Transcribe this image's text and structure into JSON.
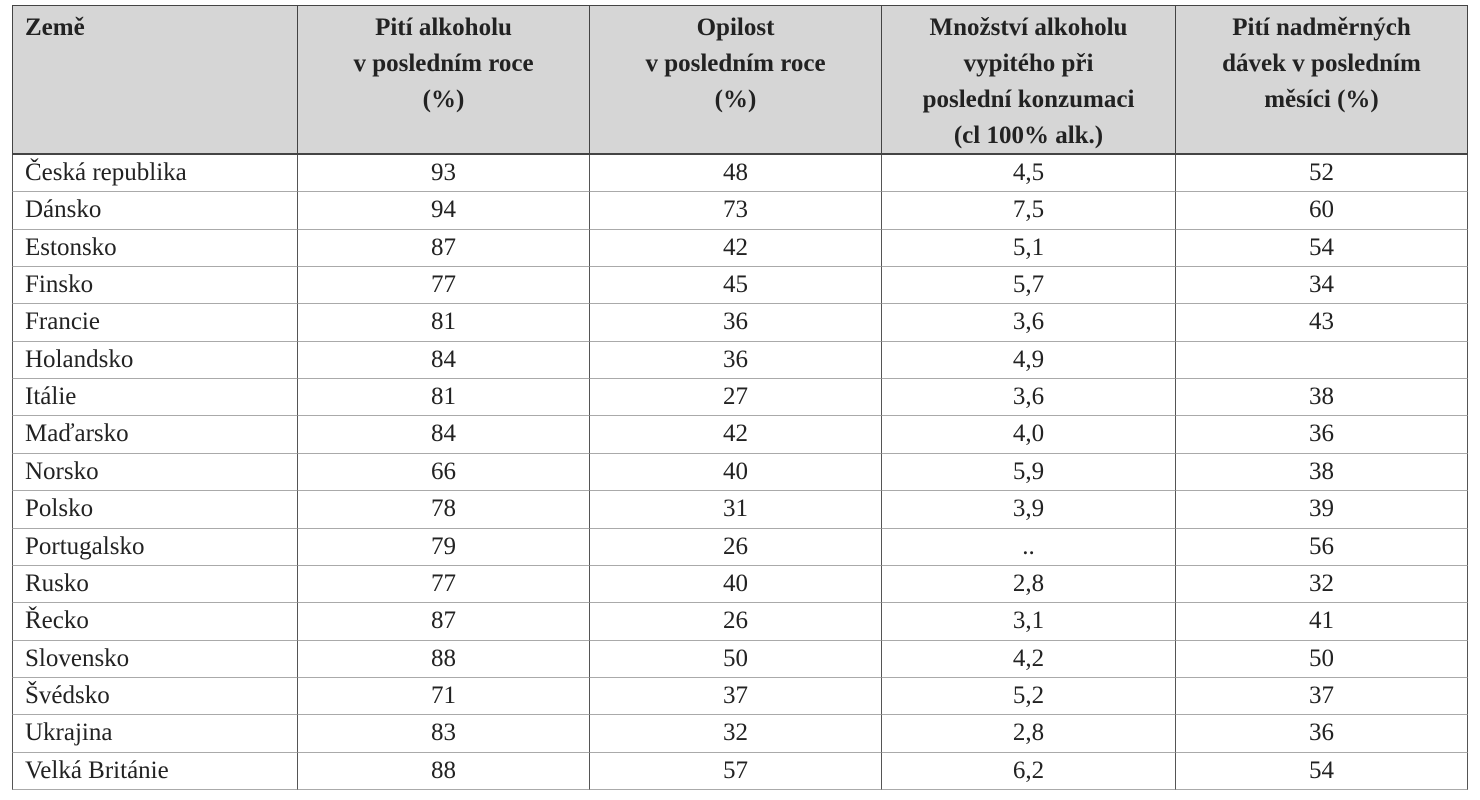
{
  "table": {
    "header": [
      [
        "Země"
      ],
      [
        "Pití alkoholu",
        "v posledním roce",
        "(%)"
      ],
      [
        "Opilost",
        "v posledním roce",
        "(%)"
      ],
      [
        "Množství alkoholu",
        "vypitého při",
        "poslední konzumaci",
        "(cl 100% alk.)"
      ],
      [
        "Pití nadměrných",
        "dávek v posledním",
        "měsíci (%)"
      ]
    ],
    "rows": [
      [
        "Česká republika",
        "93",
        "48",
        "4,5",
        "52"
      ],
      [
        "Dánsko",
        "94",
        "73",
        "7,5",
        "60"
      ],
      [
        "Estonsko",
        "87",
        "42",
        "5,1",
        "54"
      ],
      [
        "Finsko",
        "77",
        "45",
        "5,7",
        "34"
      ],
      [
        "Francie",
        "81",
        "36",
        "3,6",
        "43"
      ],
      [
        "Holandsko",
        "84",
        "36",
        "4,9",
        null
      ],
      [
        "Itálie",
        "81",
        "27",
        "3,6",
        "38"
      ],
      [
        "Maďarsko",
        "84",
        "42",
        "4,0",
        "36"
      ],
      [
        "Norsko",
        "66",
        "40",
        "5,9",
        "38"
      ],
      [
        "Polsko",
        "78",
        "31",
        "3,9",
        "39"
      ],
      [
        "Portugalsko",
        "79",
        "26",
        "..",
        "56"
      ],
      [
        "Rusko",
        "77",
        "40",
        "2,8",
        "32"
      ],
      [
        "Řecko",
        "87",
        "26",
        "3,1",
        "41"
      ],
      [
        "Slovensko",
        "88",
        "50",
        "4,2",
        "50"
      ],
      [
        "Švédsko",
        "71",
        "37",
        "5,2",
        "37"
      ],
      [
        "Ukrajina",
        "83",
        "32",
        "2,8",
        "36"
      ],
      [
        "Velká Británie",
        "88",
        "57",
        "6,2",
        "54"
      ]
    ]
  }
}
